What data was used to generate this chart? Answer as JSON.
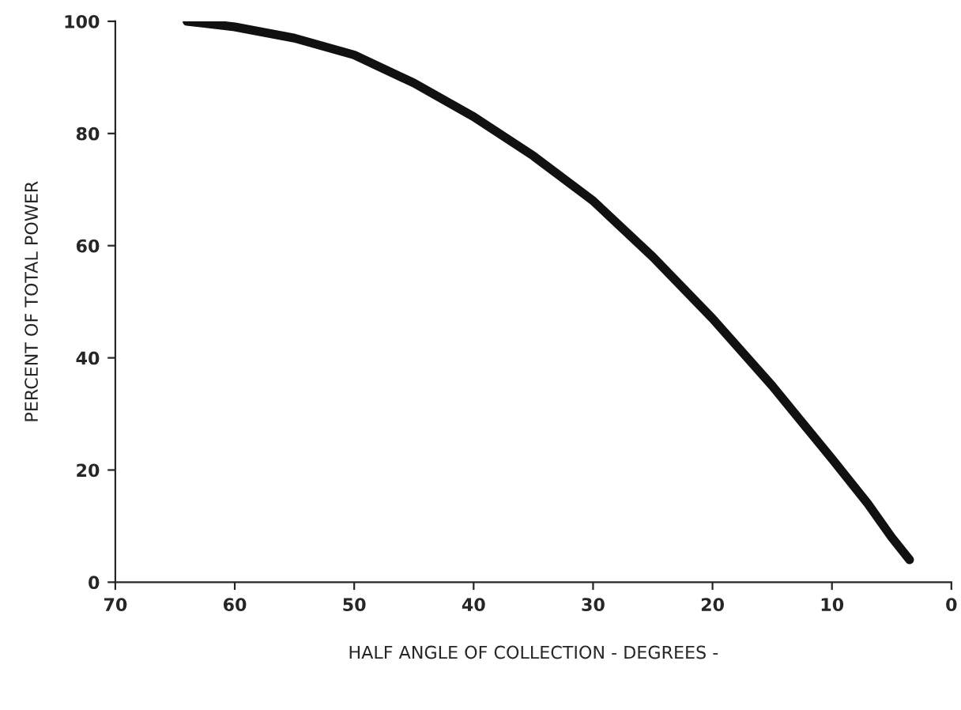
{
  "chart_data": {
    "type": "line",
    "xlabel": "HALF ANGLE OF COLLECTION - DEGREES -",
    "ylabel": "PERCENT OF TOTAL POWER",
    "x": [
      64,
      60,
      55,
      50,
      45,
      40,
      35,
      30,
      25,
      20,
      15,
      10,
      7,
      5,
      3.5
    ],
    "series": [
      {
        "color": "#111111",
        "values": [
          100,
          99,
          97,
          94,
          89,
          83,
          76,
          68,
          58,
          47,
          35,
          22,
          14,
          8,
          4
        ]
      }
    ],
    "xlim": [
      70,
      0
    ],
    "xticks": [
      70,
      60,
      50,
      40,
      30,
      20,
      10,
      0
    ],
    "ylim": [
      0,
      100
    ],
    "yticks": [
      0,
      20,
      40,
      60,
      80,
      100
    ],
    "grid": false,
    "legend": false,
    "marker": "none",
    "line_style": "solid"
  }
}
